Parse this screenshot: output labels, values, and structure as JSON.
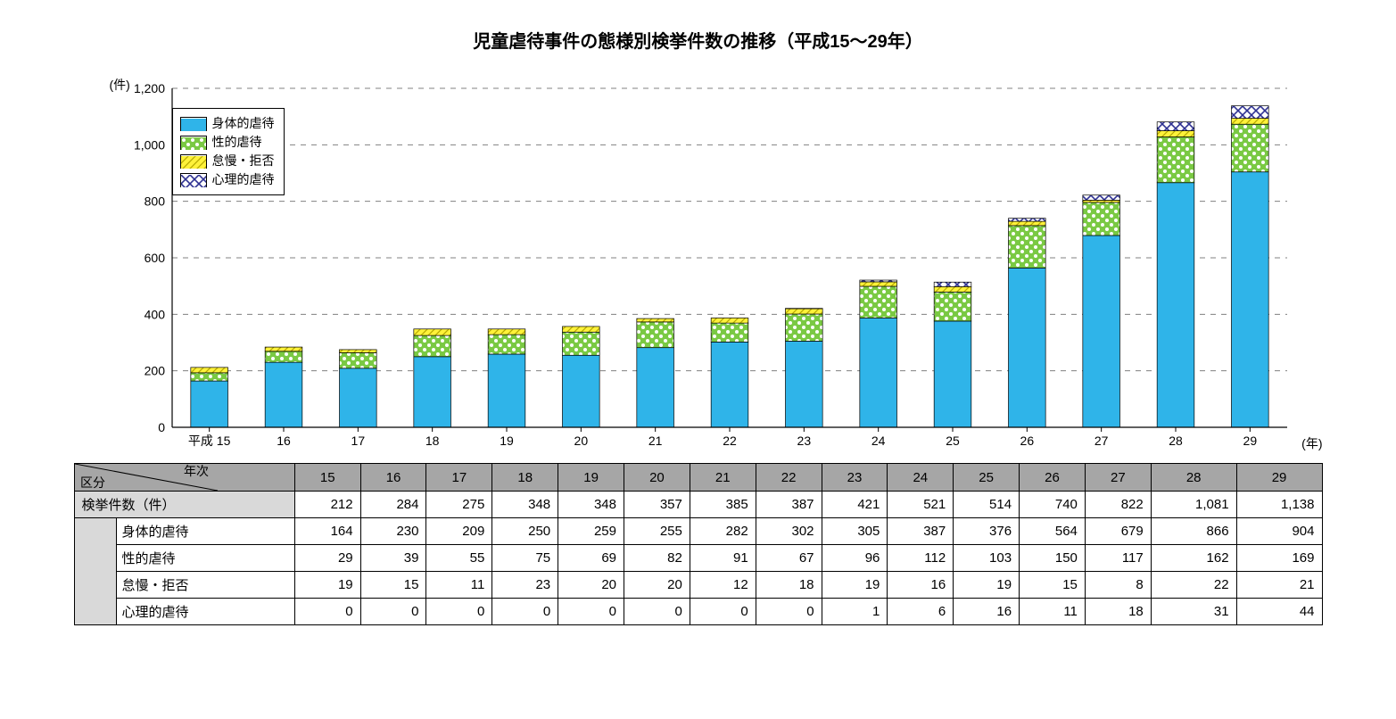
{
  "title": "児童虐待事件の態様別検挙件数の推移（平成15～29年）",
  "chart": {
    "type": "stacked-bar",
    "y_unit_label": "(件)",
    "x_unit_label": "(年)",
    "x_axis_prefix": "平成",
    "ylim": [
      0,
      1200
    ],
    "ytick_step": 200,
    "yticks": [
      0,
      200,
      400,
      600,
      800,
      1000,
      1200
    ],
    "ytick_labels": [
      "0",
      "200",
      "400",
      "600",
      "800",
      "1,000",
      "1,200"
    ],
    "grid_color": "#808080",
    "axis_color": "#000000",
    "background_color": "#ffffff",
    "bar_width_ratio": 0.5,
    "categories": [
      "15",
      "16",
      "17",
      "18",
      "19",
      "20",
      "21",
      "22",
      "23",
      "24",
      "25",
      "26",
      "27",
      "28",
      "29"
    ],
    "series": [
      {
        "key": "physical",
        "label": "身体的虐待",
        "color": "#2fb4e9",
        "pattern": "solid"
      },
      {
        "key": "sexual",
        "label": "性的虐待",
        "color": "#7ac943",
        "pattern": "dots",
        "dot_color": "#ffffff"
      },
      {
        "key": "neglect",
        "label": "怠慢・拒否",
        "color": "#fff23a",
        "pattern": "diag",
        "stripe_color": "#b5a900"
      },
      {
        "key": "psych",
        "label": "心理的虐待",
        "color": "#2e3192",
        "pattern": "cross",
        "cross_bg": "#ffffff"
      }
    ],
    "values": {
      "physical": [
        164,
        230,
        209,
        250,
        259,
        255,
        282,
        302,
        305,
        387,
        376,
        564,
        679,
        866,
        904
      ],
      "sexual": [
        29,
        39,
        55,
        75,
        69,
        82,
        91,
        67,
        96,
        112,
        103,
        150,
        117,
        162,
        169
      ],
      "neglect": [
        19,
        15,
        11,
        23,
        20,
        20,
        12,
        18,
        19,
        16,
        19,
        15,
        8,
        22,
        21
      ],
      "psych": [
        0,
        0,
        0,
        0,
        0,
        0,
        0,
        0,
        1,
        6,
        16,
        11,
        18,
        31,
        44
      ]
    },
    "label_fontsize": 14,
    "tick_fontsize": 14
  },
  "table": {
    "corner_top": "年次",
    "corner_bottom": "区分",
    "year_headers": [
      "15",
      "16",
      "17",
      "18",
      "19",
      "20",
      "21",
      "22",
      "23",
      "24",
      "25",
      "26",
      "27",
      "28",
      "29"
    ],
    "rows": [
      {
        "label": "検挙件数（件）",
        "key": "total",
        "values": [
          "212",
          "284",
          "275",
          "348",
          "348",
          "357",
          "385",
          "387",
          "421",
          "521",
          "514",
          "740",
          "822",
          "1,081",
          "1,138"
        ],
        "main": true
      },
      {
        "label": "身体的虐待",
        "key": "physical",
        "values": [
          "164",
          "230",
          "209",
          "250",
          "259",
          "255",
          "282",
          "302",
          "305",
          "387",
          "376",
          "564",
          "679",
          "866",
          "904"
        ],
        "main": false
      },
      {
        "label": "性的虐待",
        "key": "sexual",
        "values": [
          "29",
          "39",
          "55",
          "75",
          "69",
          "82",
          "91",
          "67",
          "96",
          "112",
          "103",
          "150",
          "117",
          "162",
          "169"
        ],
        "main": false
      },
      {
        "label": "怠慢・拒否",
        "key": "neglect",
        "values": [
          "19",
          "15",
          "11",
          "23",
          "20",
          "20",
          "12",
          "18",
          "19",
          "16",
          "19",
          "15",
          "8",
          "22",
          "21"
        ],
        "main": false
      },
      {
        "label": "心理的虐待",
        "key": "psych",
        "values": [
          "0",
          "0",
          "0",
          "0",
          "0",
          "0",
          "0",
          "0",
          "1",
          "6",
          "16",
          "11",
          "18",
          "31",
          "44"
        ],
        "main": false
      }
    ]
  }
}
